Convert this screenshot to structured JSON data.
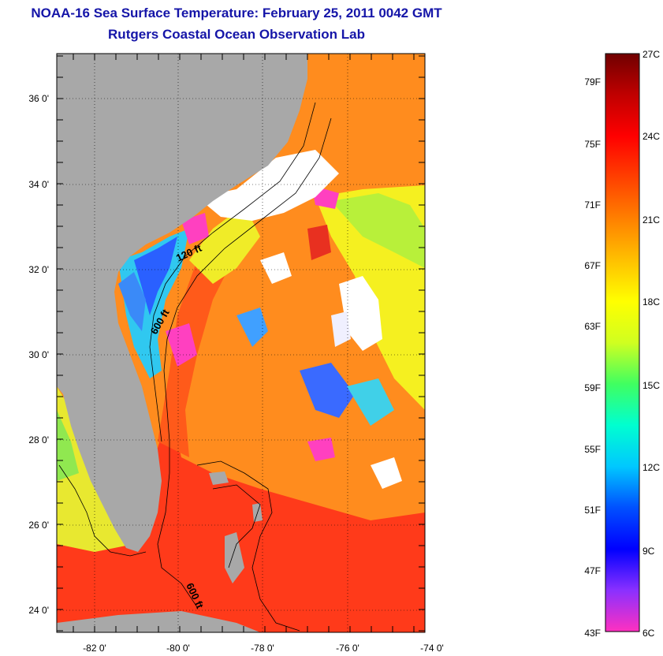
{
  "header": {
    "title": "NOAA-16 Sea Surface Temperature:  February 25, 2011 0042 GMT",
    "subtitle": "Rutgers Coastal Ocean Observation Lab"
  },
  "map": {
    "lat_labels": [
      "36 0'",
      "34 0'",
      "32 0'",
      "30 0'",
      "28 0'",
      "26 0'",
      "24 0'"
    ],
    "lon_labels": [
      "-82 0'",
      "-80 0'",
      "-78 0'",
      "-76 0'",
      "-74 0'"
    ],
    "contour_labels": [
      "120 ft",
      "600 ft",
      "600 ft"
    ],
    "colors": {
      "land": "#a8a8a8",
      "cloud": "#ffffff",
      "warm_gulf": "#ff3a1a",
      "orange": "#ff8c1e",
      "yellow": "#f5f020",
      "cyan": "#30d8f0",
      "blue": "#2060ff",
      "magenta": "#ff40c0"
    }
  },
  "colorbar": {
    "fahrenheit_labels": [
      "79F",
      "75F",
      "71F",
      "67F",
      "63F",
      "59F",
      "55F",
      "51F",
      "47F",
      "43F"
    ],
    "celsius_labels": [
      "27C",
      "24C",
      "21C",
      "18C",
      "15C",
      "12C",
      "9C",
      "6C"
    ],
    "stops": [
      "#ff30c0",
      "#8a30ff",
      "#0000ff",
      "#0050ff",
      "#00c8ff",
      "#00ffd0",
      "#40ff60",
      "#d0ff20",
      "#ffff00",
      "#ffc000",
      "#ff8000",
      "#ff4000",
      "#ff0000",
      "#c00000",
      "#700000"
    ]
  }
}
